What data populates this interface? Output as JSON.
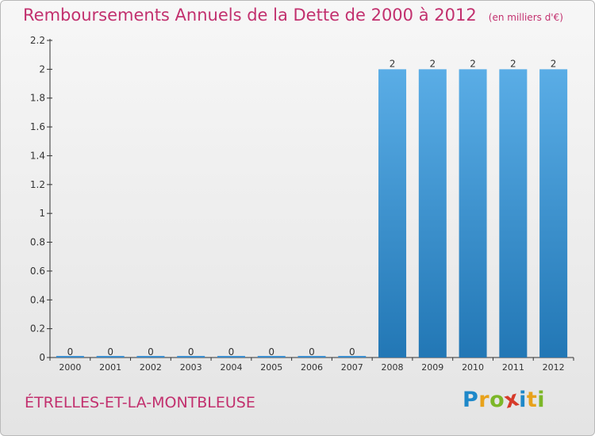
{
  "header": {
    "title": "Remboursements Annuels de la Dette de 2000 à 2012",
    "unit": "(en milliers d'€)"
  },
  "footer": {
    "commune": "ÉTRELLES-ET-LA-MONTBLEUSE",
    "logo_letters": [
      {
        "ch": "P",
        "color": "#1e88c9"
      },
      {
        "ch": "r",
        "color": "#e8a21b"
      },
      {
        "ch": "o",
        "color": "#7cb728"
      },
      {
        "ch": "x",
        "color": "#d63a2a"
      },
      {
        "ch": "i",
        "color": "#1e88c9"
      },
      {
        "ch": "t",
        "color": "#e8a21b"
      },
      {
        "ch": "i",
        "color": "#7cb728"
      }
    ]
  },
  "chart_data": {
    "type": "bar",
    "categories": [
      "2000",
      "2001",
      "2002",
      "2003",
      "2004",
      "2005",
      "2006",
      "2007",
      "2008",
      "2009",
      "2010",
      "2011",
      "2012"
    ],
    "values": [
      0,
      0,
      0,
      0,
      0,
      0,
      0,
      0,
      2,
      2,
      2,
      2,
      2
    ],
    "data_labels": [
      "0",
      "0",
      "0",
      "0",
      "0",
      "0",
      "0",
      "0",
      "2",
      "2",
      "2",
      "2",
      "2"
    ],
    "title": "Remboursements Annuels de la Dette de 2000 à 2012",
    "xlabel": "",
    "ylabel": "",
    "ylim": [
      0,
      2.2
    ],
    "yticks": [
      0,
      0.2,
      0.4,
      0.6,
      0.8,
      1,
      1.2,
      1.4,
      1.6,
      1.8,
      2,
      2.2
    ],
    "ytick_labels": [
      "0",
      "0.2",
      "0.4",
      "0.6",
      "0.8",
      "1",
      "1.2",
      "1.4",
      "1.6",
      "1.8",
      "2",
      "2.2"
    ],
    "grid": false,
    "colors": {
      "bar_top": "#5aade6",
      "bar_bottom": "#2277b5",
      "zero_bar": "#3b8fd0",
      "axis": "#333333",
      "text": "#333333"
    }
  }
}
